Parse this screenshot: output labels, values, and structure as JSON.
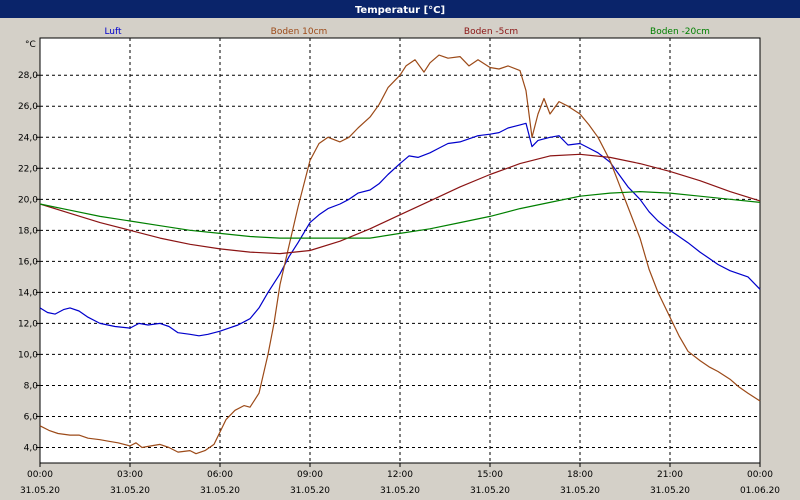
{
  "window": {
    "title": "Temperatur [°C]",
    "title_bar_color": "#0a246a",
    "background": "#d4d0c8",
    "plot_background": "#ffffff"
  },
  "chart_data": {
    "type": "line",
    "title": "Temperatur [°C]",
    "ylabel": "°C",
    "xlabel": "",
    "ylim": [
      3,
      30.4
    ],
    "xlim": [
      "31.05.20 00:00",
      "01.06.20 00:00"
    ],
    "grid": true,
    "legend_position": "top",
    "y_ticks": [
      "4,0",
      "6,0",
      "8,0",
      "10,0",
      "12,0",
      "14,0",
      "16,0",
      "18,0",
      "20,0",
      "22,0",
      "24,0",
      "26,0",
      "28,0"
    ],
    "y_tick_values": [
      4,
      6,
      8,
      10,
      12,
      14,
      16,
      18,
      20,
      22,
      24,
      26,
      28
    ],
    "x_ticks": [
      {
        "time": "00:00",
        "date": "31.05.20",
        "hour": 0
      },
      {
        "time": "03:00",
        "date": "31.05.20",
        "hour": 3
      },
      {
        "time": "06:00",
        "date": "31.05.20",
        "hour": 6
      },
      {
        "time": "09:00",
        "date": "31.05.20",
        "hour": 9
      },
      {
        "time": "12:00",
        "date": "31.05.20",
        "hour": 12
      },
      {
        "time": "15:00",
        "date": "31.05.20",
        "hour": 15
      },
      {
        "time": "18:00",
        "date": "31.05.20",
        "hour": 18
      },
      {
        "time": "21:00",
        "date": "31.05.20",
        "hour": 21
      },
      {
        "time": "00:00",
        "date": "01.06.20",
        "hour": 24
      }
    ],
    "series": [
      {
        "name": "Luft",
        "color": "#0000cc",
        "points": [
          [
            0,
            13.0
          ],
          [
            0.25,
            12.7
          ],
          [
            0.5,
            12.6
          ],
          [
            0.8,
            12.9
          ],
          [
            1.0,
            13.0
          ],
          [
            1.3,
            12.8
          ],
          [
            1.6,
            12.4
          ],
          [
            2.0,
            12.0
          ],
          [
            2.5,
            11.8
          ],
          [
            3.0,
            11.7
          ],
          [
            3.3,
            12.0
          ],
          [
            3.6,
            11.9
          ],
          [
            4.0,
            12.0
          ],
          [
            4.3,
            11.8
          ],
          [
            4.6,
            11.4
          ],
          [
            5.0,
            11.3
          ],
          [
            5.3,
            11.2
          ],
          [
            5.6,
            11.3
          ],
          [
            6.0,
            11.5
          ],
          [
            6.3,
            11.7
          ],
          [
            6.6,
            11.9
          ],
          [
            7.0,
            12.3
          ],
          [
            7.3,
            13.0
          ],
          [
            7.6,
            14.0
          ],
          [
            8.0,
            15.2
          ],
          [
            8.3,
            16.3
          ],
          [
            8.6,
            17.2
          ],
          [
            9.0,
            18.5
          ],
          [
            9.3,
            19.0
          ],
          [
            9.6,
            19.4
          ],
          [
            10.0,
            19.7
          ],
          [
            10.3,
            20.0
          ],
          [
            10.6,
            20.4
          ],
          [
            11.0,
            20.6
          ],
          [
            11.3,
            21.0
          ],
          [
            11.6,
            21.6
          ],
          [
            12.0,
            22.3
          ],
          [
            12.3,
            22.8
          ],
          [
            12.6,
            22.7
          ],
          [
            13.0,
            23.0
          ],
          [
            13.3,
            23.3
          ],
          [
            13.6,
            23.6
          ],
          [
            14.0,
            23.7
          ],
          [
            14.3,
            23.9
          ],
          [
            14.6,
            24.1
          ],
          [
            15.0,
            24.2
          ],
          [
            15.3,
            24.3
          ],
          [
            15.6,
            24.6
          ],
          [
            16.0,
            24.8
          ],
          [
            16.2,
            24.9
          ],
          [
            16.4,
            23.4
          ],
          [
            16.6,
            23.8
          ],
          [
            17.0,
            24.0
          ],
          [
            17.3,
            24.1
          ],
          [
            17.6,
            23.5
          ],
          [
            18.0,
            23.6
          ],
          [
            18.3,
            23.3
          ],
          [
            18.6,
            23.0
          ],
          [
            19.0,
            22.4
          ],
          [
            19.3,
            21.6
          ],
          [
            19.6,
            20.8
          ],
          [
            20.0,
            20.0
          ],
          [
            20.3,
            19.2
          ],
          [
            20.6,
            18.6
          ],
          [
            21.0,
            18.0
          ],
          [
            21.3,
            17.6
          ],
          [
            21.6,
            17.2
          ],
          [
            22.0,
            16.6
          ],
          [
            22.3,
            16.2
          ],
          [
            22.6,
            15.8
          ],
          [
            23.0,
            15.4
          ],
          [
            23.3,
            15.2
          ],
          [
            23.6,
            15.0
          ],
          [
            24.0,
            14.2
          ]
        ]
      },
      {
        "name": "Boden 10cm",
        "color": "#9c4a18",
        "points": [
          [
            0,
            5.4
          ],
          [
            0.3,
            5.1
          ],
          [
            0.6,
            4.9
          ],
          [
            1.0,
            4.8
          ],
          [
            1.3,
            4.8
          ],
          [
            1.6,
            4.6
          ],
          [
            2.0,
            4.5
          ],
          [
            2.3,
            4.4
          ],
          [
            2.6,
            4.3
          ],
          [
            3.0,
            4.1
          ],
          [
            3.2,
            4.3
          ],
          [
            3.4,
            4.0
          ],
          [
            3.7,
            4.1
          ],
          [
            4.0,
            4.2
          ],
          [
            4.3,
            4.0
          ],
          [
            4.6,
            3.7
          ],
          [
            5.0,
            3.8
          ],
          [
            5.2,
            3.6
          ],
          [
            5.5,
            3.8
          ],
          [
            5.8,
            4.2
          ],
          [
            6.0,
            5.0
          ],
          [
            6.2,
            5.8
          ],
          [
            6.5,
            6.4
          ],
          [
            6.8,
            6.7
          ],
          [
            7.0,
            6.6
          ],
          [
            7.3,
            7.5
          ],
          [
            7.6,
            10.0
          ],
          [
            7.8,
            12.0
          ],
          [
            8.0,
            14.5
          ],
          [
            8.3,
            17.0
          ],
          [
            8.6,
            19.5
          ],
          [
            9.0,
            22.5
          ],
          [
            9.3,
            23.6
          ],
          [
            9.6,
            24.0
          ],
          [
            10.0,
            23.7
          ],
          [
            10.3,
            24.0
          ],
          [
            10.6,
            24.6
          ],
          [
            11.0,
            25.3
          ],
          [
            11.3,
            26.1
          ],
          [
            11.6,
            27.2
          ],
          [
            12.0,
            28.0
          ],
          [
            12.2,
            28.6
          ],
          [
            12.5,
            29.0
          ],
          [
            12.8,
            28.2
          ],
          [
            13.0,
            28.8
          ],
          [
            13.3,
            29.3
          ],
          [
            13.6,
            29.1
          ],
          [
            14.0,
            29.2
          ],
          [
            14.3,
            28.6
          ],
          [
            14.6,
            29.0
          ],
          [
            15.0,
            28.5
          ],
          [
            15.3,
            28.4
          ],
          [
            15.6,
            28.6
          ],
          [
            16.0,
            28.3
          ],
          [
            16.2,
            27.0
          ],
          [
            16.4,
            24.0
          ],
          [
            16.6,
            25.5
          ],
          [
            16.8,
            26.5
          ],
          [
            17.0,
            25.5
          ],
          [
            17.3,
            26.3
          ],
          [
            17.6,
            26.0
          ],
          [
            18.0,
            25.5
          ],
          [
            18.3,
            24.8
          ],
          [
            18.6,
            24.0
          ],
          [
            19.0,
            22.5
          ],
          [
            19.3,
            21.0
          ],
          [
            19.6,
            19.5
          ],
          [
            20.0,
            17.5
          ],
          [
            20.3,
            15.5
          ],
          [
            20.6,
            14.0
          ],
          [
            21.0,
            12.4
          ],
          [
            21.3,
            11.2
          ],
          [
            21.6,
            10.2
          ],
          [
            22.0,
            9.6
          ],
          [
            22.3,
            9.2
          ],
          [
            22.6,
            8.9
          ],
          [
            23.0,
            8.4
          ],
          [
            23.3,
            7.9
          ],
          [
            23.6,
            7.5
          ],
          [
            24.0,
            7.0
          ]
        ]
      },
      {
        "name": "Boden -5cm",
        "color": "#8b1414",
        "points": [
          [
            0,
            19.7
          ],
          [
            1,
            19.1
          ],
          [
            2,
            18.5
          ],
          [
            3,
            18.0
          ],
          [
            4,
            17.5
          ],
          [
            5,
            17.1
          ],
          [
            6,
            16.8
          ],
          [
            7,
            16.6
          ],
          [
            8,
            16.5
          ],
          [
            9,
            16.7
          ],
          [
            10,
            17.3
          ],
          [
            11,
            18.1
          ],
          [
            12,
            19.0
          ],
          [
            13,
            19.9
          ],
          [
            14,
            20.8
          ],
          [
            15,
            21.6
          ],
          [
            16,
            22.3
          ],
          [
            17,
            22.8
          ],
          [
            18,
            22.9
          ],
          [
            19,
            22.7
          ],
          [
            20,
            22.3
          ],
          [
            21,
            21.8
          ],
          [
            22,
            21.2
          ],
          [
            23,
            20.5
          ],
          [
            24,
            19.9
          ]
        ]
      },
      {
        "name": "Boden -20cm",
        "color": "#008000",
        "points": [
          [
            0,
            19.7
          ],
          [
            1,
            19.3
          ],
          [
            2,
            18.9
          ],
          [
            3,
            18.6
          ],
          [
            4,
            18.3
          ],
          [
            5,
            18.0
          ],
          [
            6,
            17.8
          ],
          [
            7,
            17.6
          ],
          [
            8,
            17.5
          ],
          [
            9,
            17.5
          ],
          [
            10,
            17.5
          ],
          [
            11,
            17.5
          ],
          [
            12,
            17.8
          ],
          [
            13,
            18.1
          ],
          [
            14,
            18.5
          ],
          [
            15,
            18.9
          ],
          [
            16,
            19.4
          ],
          [
            17,
            19.8
          ],
          [
            18,
            20.2
          ],
          [
            19,
            20.4
          ],
          [
            20,
            20.5
          ],
          [
            21,
            20.4
          ],
          [
            22,
            20.2
          ],
          [
            23,
            20.0
          ],
          [
            24,
            19.8
          ]
        ]
      }
    ]
  }
}
